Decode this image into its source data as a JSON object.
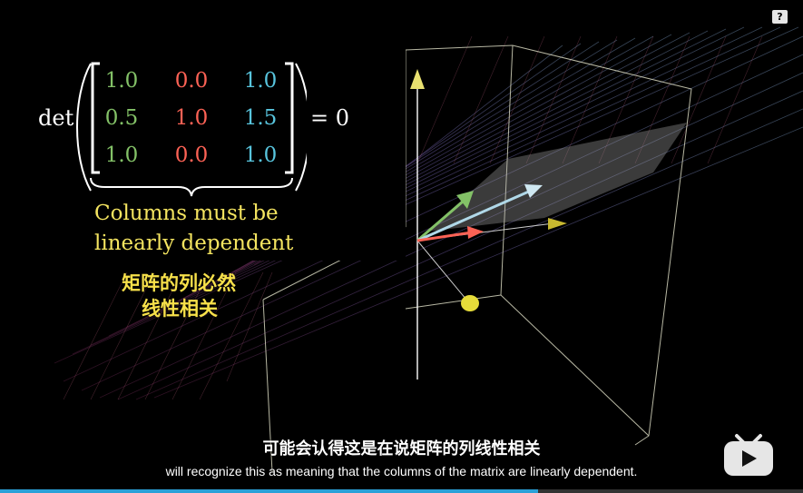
{
  "matrix": {
    "prefix": "det",
    "suffix": "= 0",
    "rows": [
      [
        "1.0",
        "0.0",
        "1.0"
      ],
      [
        "0.5",
        "1.0",
        "1.5"
      ],
      [
        "1.0",
        "0.0",
        "1.0"
      ]
    ]
  },
  "annotation": {
    "line1": "Columns must be",
    "line2": "linearly dependent",
    "zh_line1": "矩阵的列必然",
    "zh_line2": "线性相关"
  },
  "subtitles": {
    "zh": "可能会认得这是在说矩阵的列线性相关",
    "en": "will recognize this as meaning that the columns of the matrix are linearly dependent."
  },
  "player": {
    "help_label": "?",
    "progress": 0.67
  },
  "colors": {
    "column1": "#83c167",
    "column2": "#fc6255",
    "column3": "#58c4dd",
    "annotation": "#f4e460"
  }
}
